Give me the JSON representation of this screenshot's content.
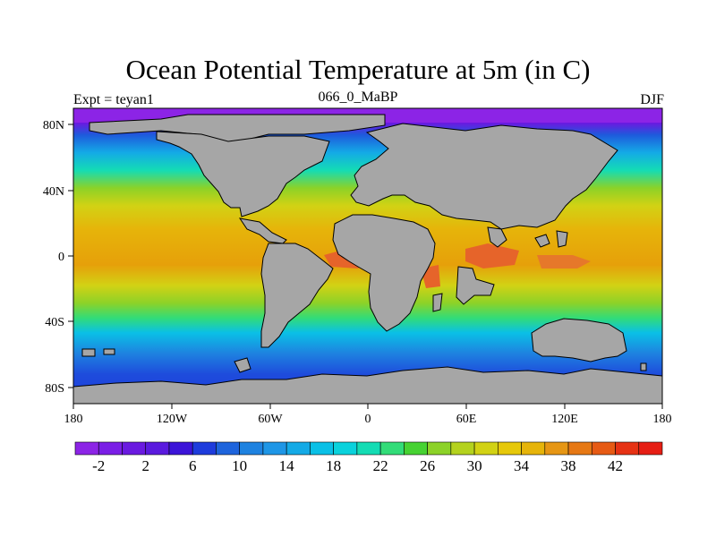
{
  "title": "Ocean Potential Temperature at 5m (in C)",
  "left_subtitle": "Expt = teyan1",
  "center_subtitle": "066_0_MaBP",
  "right_subtitle": "DJF",
  "lon_ticks": [
    "180",
    "120W",
    "60W",
    "0",
    "60E",
    "120E",
    "180"
  ],
  "lat_ticks": [
    "80N",
    "40N",
    "0",
    "40S",
    "80S"
  ],
  "colorbar": {
    "labels": [
      "-2",
      "2",
      "6",
      "10",
      "14",
      "18",
      "22",
      "26",
      "30",
      "34",
      "38",
      "42"
    ],
    "colors": [
      "#8c24e6",
      "#7a1ee6",
      "#6a1ae0",
      "#5a1ade",
      "#3c14d8",
      "#1e3cdc",
      "#1e64dc",
      "#1e82e0",
      "#1e96e6",
      "#14aae6",
      "#0ac0e6",
      "#0ad2dc",
      "#14dcb4",
      "#32dc78",
      "#46d232",
      "#8cd228",
      "#b4d21e",
      "#d2d214",
      "#e6c80a",
      "#e6b40a",
      "#e69614",
      "#e67814",
      "#e65a14",
      "#e63214",
      "#e61e14"
    ]
  },
  "colors": {
    "land": "#a6a6a6",
    "land_outline": "#000000"
  }
}
